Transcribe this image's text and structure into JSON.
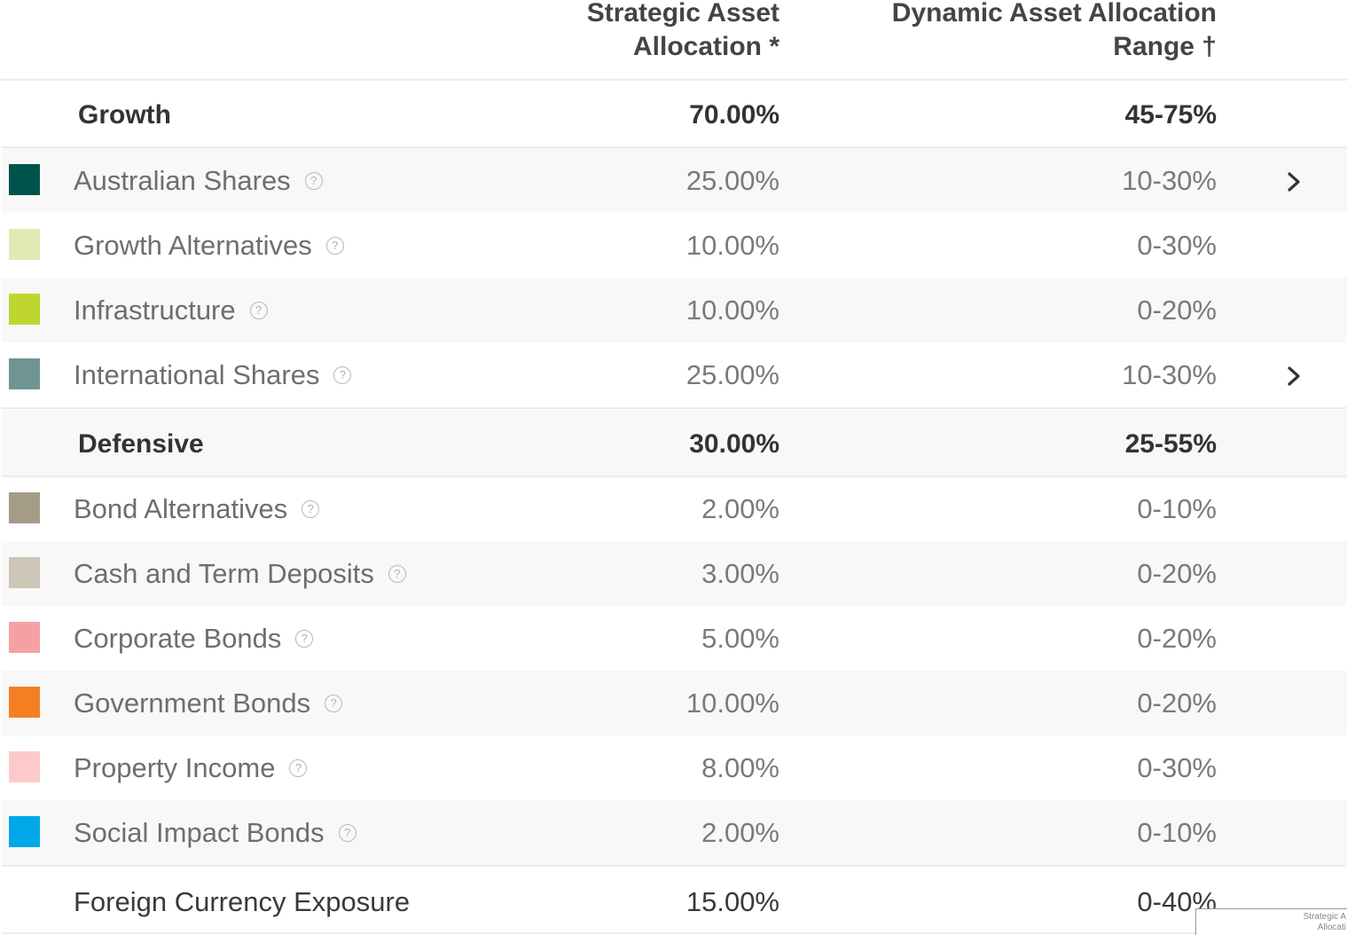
{
  "header": {
    "saa_line1": "Strategic Asset",
    "saa_line2": "Allocation *",
    "daa_line1": "Dynamic Asset Allocation",
    "daa_line2": "Range †"
  },
  "growth": {
    "label": "Growth",
    "saa": "70.00%",
    "daa": "45-75%",
    "items": [
      {
        "label": "Australian Shares",
        "saa": "25.00%",
        "daa": "10-30%",
        "color": "#00534b",
        "expandable": true
      },
      {
        "label": "Growth Alternatives",
        "saa": "10.00%",
        "daa": "0-30%",
        "color": "#e0ebb4",
        "expandable": false
      },
      {
        "label": "Infrastructure",
        "saa": "10.00%",
        "daa": "0-20%",
        "color": "#bfd630",
        "expandable": false
      },
      {
        "label": "International Shares",
        "saa": "25.00%",
        "daa": "10-30%",
        "color": "#6f9593",
        "expandable": true
      }
    ]
  },
  "defensive": {
    "label": "Defensive",
    "saa": "30.00%",
    "daa": "25-55%",
    "items": [
      {
        "label": "Bond Alternatives",
        "saa": "2.00%",
        "daa": "0-10%",
        "color": "#a59c87"
      },
      {
        "label": "Cash and Term Deposits",
        "saa": "3.00%",
        "daa": "0-20%",
        "color": "#cbc6b6"
      },
      {
        "label": "Corporate Bonds",
        "saa": "5.00%",
        "daa": "0-20%",
        "color": "#f5a1a3"
      },
      {
        "label": "Government Bonds",
        "saa": "10.00%",
        "daa": "0-20%",
        "color": "#f47f22"
      },
      {
        "label": "Property Income",
        "saa": "8.00%",
        "daa": "0-30%",
        "color": "#fccbc9"
      },
      {
        "label": "Social Impact Bonds",
        "saa": "2.00%",
        "daa": "0-10%",
        "color": "#00a8e8"
      }
    ]
  },
  "total": {
    "label": "Foreign Currency Exposure",
    "saa": "15.00%",
    "daa": "0-40%"
  },
  "icons": {
    "help": "?",
    "chevron": "chevron-right-icon"
  },
  "tooltip": {
    "line1": "Strategic A",
    "line2": "Allocati"
  }
}
